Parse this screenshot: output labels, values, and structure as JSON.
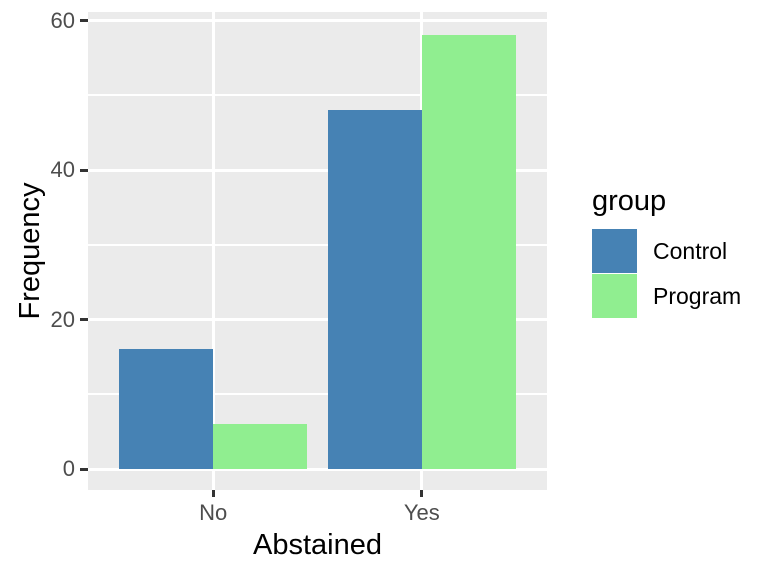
{
  "chart_data": {
    "type": "bar",
    "bar_mode": "dodge",
    "title": "",
    "xlabel": "Abstained",
    "ylabel": "Frequency",
    "categories": [
      "No",
      "Yes"
    ],
    "series": [
      {
        "name": "Control",
        "color": "#4682B4",
        "values": [
          16,
          48
        ]
      },
      {
        "name": "Program",
        "color": "#90EE90",
        "values": [
          6,
          58
        ]
      }
    ],
    "legend_title": "group",
    "legend_position": "right",
    "ylim": [
      0,
      60
    ],
    "y_ticks": [
      0,
      20,
      40,
      60
    ],
    "y_tick_labels": [
      "0",
      "20",
      "40",
      "60"
    ],
    "y_minor_ticks": [
      10,
      30,
      50
    ],
    "grid": true,
    "colors": {
      "panel_background": "#EBEBEB",
      "gridline": "#FFFFFF",
      "tick_label": "#4D4D4D",
      "tick_mark": "#333333",
      "axis_title": "#000000"
    }
  }
}
